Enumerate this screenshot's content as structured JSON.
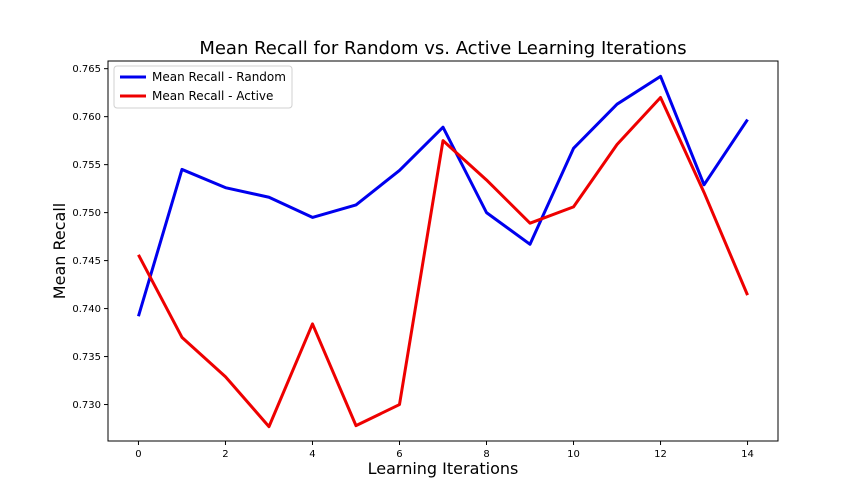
{
  "chart_data": {
    "type": "line",
    "title": "Mean Recall for Random vs. Active Learning Iterations",
    "xlabel": "Learning Iterations",
    "ylabel": "Mean Recall",
    "x": [
      0,
      1,
      2,
      3,
      4,
      5,
      6,
      7,
      8,
      9,
      10,
      11,
      12,
      13,
      14
    ],
    "xlim": [
      -0.7,
      14.7
    ],
    "ylim": [
      0.7262,
      0.7658
    ],
    "xticks": [
      0,
      2,
      4,
      6,
      8,
      10,
      12,
      14
    ],
    "xtick_labels": [
      "0",
      "2",
      "4",
      "6",
      "8",
      "10",
      "12",
      "14"
    ],
    "yticks": [
      0.73,
      0.735,
      0.74,
      0.745,
      0.75,
      0.755,
      0.76,
      0.765
    ],
    "ytick_labels": [
      "0.730",
      "0.735",
      "0.740",
      "0.745",
      "0.750",
      "0.755",
      "0.760",
      "0.765"
    ],
    "grid": false,
    "legend_position": "top-left",
    "series": [
      {
        "name": "Mean Recall - Random",
        "color": "#0000ee",
        "values": [
          0.7392,
          0.7545,
          0.7526,
          0.7516,
          0.7495,
          0.7508,
          0.7544,
          0.7589,
          0.75,
          0.7467,
          0.7567,
          0.7613,
          0.7642,
          0.7529,
          0.7597
        ]
      },
      {
        "name": "Mean Recall - Active",
        "color": "#ee0000",
        "values": [
          0.7456,
          0.737,
          0.7329,
          0.7277,
          0.7384,
          0.7278,
          0.73,
          0.7575,
          0.7534,
          0.7489,
          0.7506,
          0.7571,
          0.762,
          0.7521,
          0.7414
        ]
      }
    ]
  }
}
